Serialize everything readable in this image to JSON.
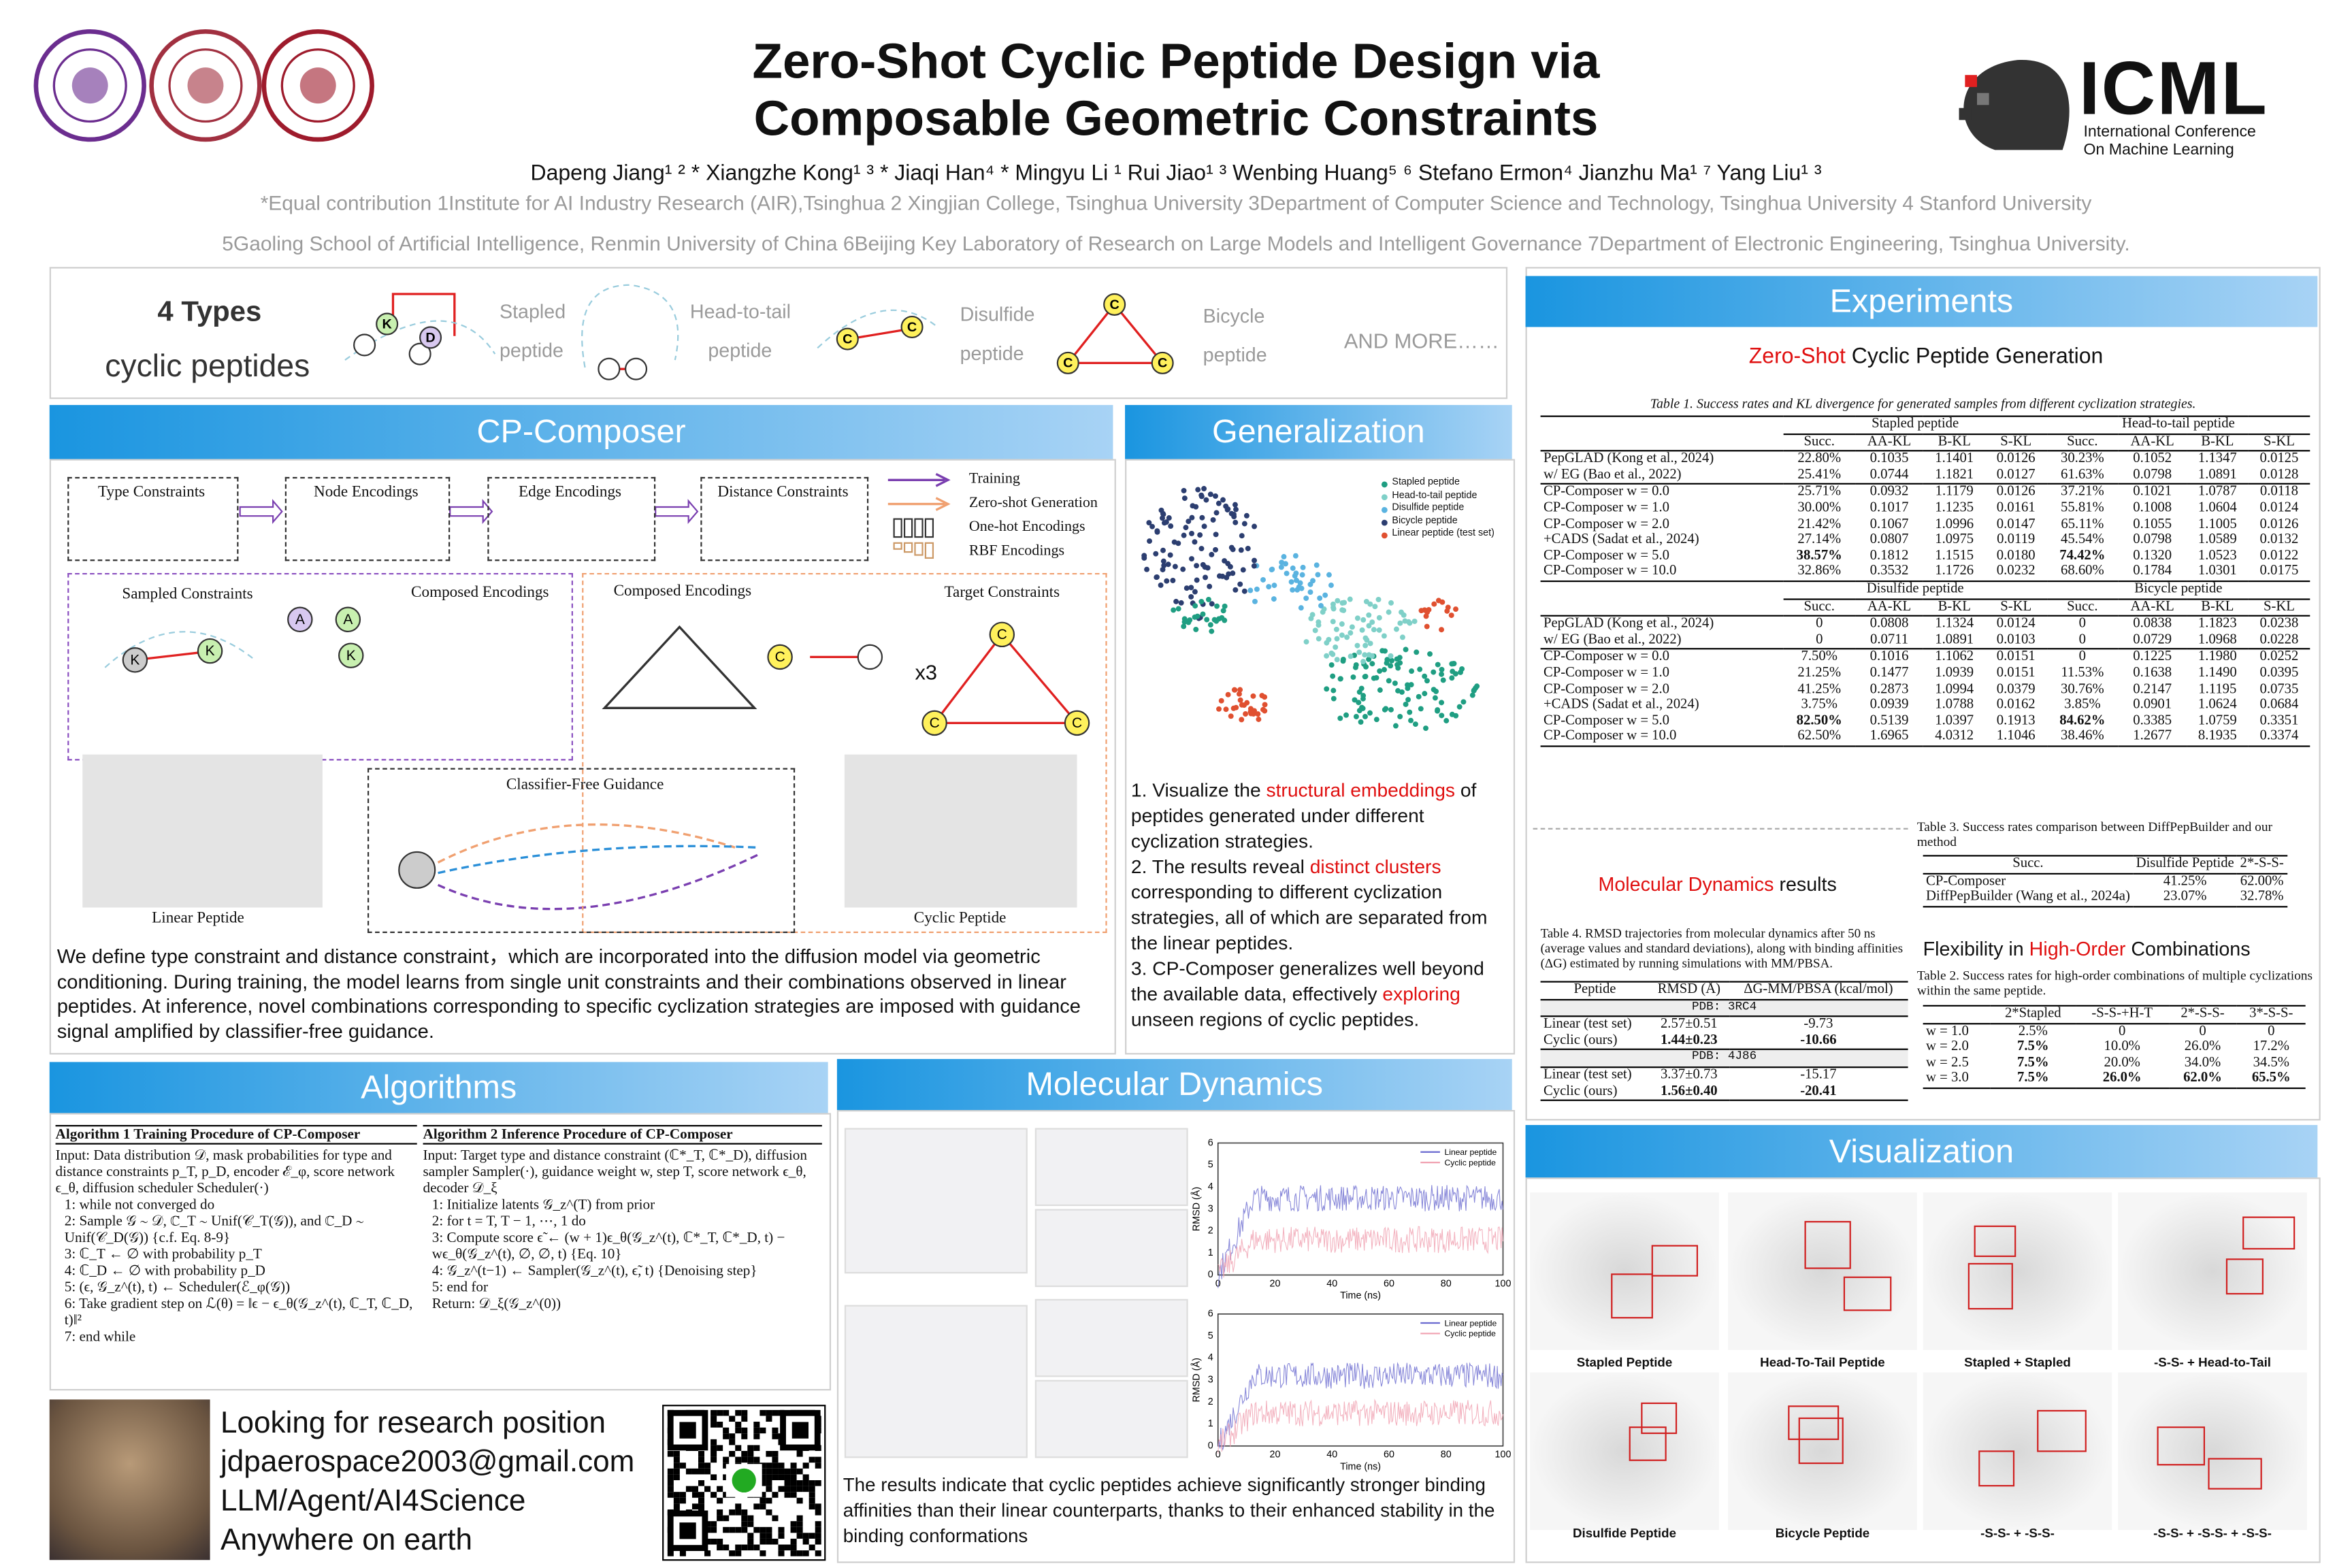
{
  "header": {
    "title": [
      "Zero-Shot Cyclic Peptide Design via",
      "Composable Geometric Constraints"
    ],
    "authors": "Dapeng Jiang¹ ² * Xiangzhe Kong¹ ³ * Jiaqi Han⁴ * Mingyu Li ¹ Rui Jiao¹ ³ Wenbing Huang⁵ ⁶ Stefano Ermon⁴ Jianzhu Ma¹ ⁷ Yang Liu¹ ³",
    "affiliations": [
      "*Equal contribution 1Institute for AI Industry Research (AIR),Tsinghua 2 Xingjian College, Tsinghua University 3Department of Computer Science and Technology, Tsinghua University 4 Stanford University",
      "5Gaoling School of Artificial Intelligence, Renmin University of China 6Beijing Key Laboratory of Research on Large Models and Intelligent Governance 7Department of Electronic Engineering, Tsinghua University."
    ],
    "logo": {
      "name": "ICML",
      "line1": "International Conference",
      "line2": "On Machine Learning"
    }
  },
  "types": {
    "heading": "4 Types",
    "subheading": "cyclic peptides",
    "labels": [
      "Stapled",
      "peptide",
      "Head-to-tail",
      "peptide",
      "Disulfide",
      "peptide",
      "Bicycle",
      "peptide"
    ],
    "more": "AND MORE……",
    "residues": [
      "K",
      "D",
      "C",
      "C",
      "C",
      "C",
      "C"
    ]
  },
  "sections": {
    "cp_composer": "CP-Composer",
    "generalization": "Generalization",
    "experiments": "Experiments",
    "algorithms": "Algorithms",
    "molecular_dynamics": "Molecular Dynamics",
    "visualization": "Visualization"
  },
  "cp_composer": {
    "boxes": [
      "Type Constraints",
      "Node Encodings",
      "Edge Encodings",
      "Distance Constraints"
    ],
    "legend": [
      "Training",
      "Zero-shot Generation",
      "One-hot Encodings",
      "RBF Encodings"
    ],
    "labels": [
      "Sampled Constraints",
      "Composed Encodings",
      "Composed Encodings",
      "Target Constraints",
      "Classifier-Free Guidance",
      "Linear Peptide",
      "Cyclic Peptide",
      "x3"
    ],
    "residues": [
      "K",
      "A",
      "K",
      "A",
      "K",
      "C",
      "C",
      "C",
      "C"
    ],
    "text": "We define type constraint and distance constraint，which are incorporated into the diffusion model via geometric conditioning. During training, the model learns from single unit constraints and their combinations observed in linear peptides. At inference, novel combinations corresponding to specific cyclization strategies are imposed with guidance signal amplified by classifier-free guidance."
  },
  "generalization": {
    "legend": [
      "Stapled peptide",
      "Head-to-tail peptide",
      "Disulfide peptide",
      "Bicycle peptide",
      "Linear peptide (test set)"
    ],
    "items": [
      {
        "before": "1. Visualize the ",
        "highlight": "structural embeddings",
        "after": " of peptides generated under different cyclization strategies."
      },
      {
        "before": "2. The results reveal ",
        "highlight": "distinct clusters",
        "after": " corresponding to different cyclization strategies, all of which are separated from the linear peptides."
      },
      {
        "before": "3. CP-Composer generalizes well beyond the available data, effectively ",
        "highlight": "exploring",
        "after": " unseen regions of cyclic peptides."
      }
    ]
  },
  "experiments": {
    "subtitle": {
      "highlight": "Zero-Shot",
      "rest": " Cyclic Peptide Generation"
    },
    "table1": {
      "caption": "Table 1. Success rates and KL divergence for generated samples from different cyclization strategies.",
      "sections": [
        {
          "groups": [
            "Stapled peptide",
            "Head-to-tail peptide"
          ],
          "columns": [
            "Succ.",
            "AA-KL",
            "B-KL",
            "S-KL",
            "Succ.",
            "AA-KL",
            "B-KL",
            "S-KL"
          ],
          "blocks": [
            [
              [
                "PepGLAD (Kong et al., 2024)",
                "22.80%",
                "0.1035",
                "1.1401",
                "0.0126",
                "30.23%",
                "0.1052",
                "1.1347",
                "0.0125"
              ],
              [
                "w/ EG (Bao et al., 2022)",
                "25.41%",
                "0.0744",
                "1.1821",
                "0.0127",
                "61.63%",
                "0.0798",
                "1.0891",
                "0.0128"
              ]
            ],
            [
              [
                "CP-Composer w = 0.0",
                "25.71%",
                "0.0932",
                "1.1179",
                "0.0126",
                "37.21%",
                "0.1021",
                "1.0787",
                "0.0118"
              ],
              [
                "CP-Composer w = 1.0",
                "30.00%",
                "0.1017",
                "1.1235",
                "0.0161",
                "55.81%",
                "0.1008",
                "1.0604",
                "0.0124"
              ],
              [
                "CP-Composer w = 2.0",
                "21.42%",
                "0.1067",
                "1.0996",
                "0.0147",
                "65.11%",
                "0.1055",
                "1.1005",
                "0.0126"
              ],
              [
                "+CADS (Sadat et al., 2024)",
                "27.14%",
                "0.0807",
                "1.0975",
                "0.0119",
                "45.54%",
                "0.0798",
                "1.0589",
                "0.0132"
              ],
              [
                "CP-Composer w = 5.0",
                "38.57%",
                "0.1812",
                "1.1515",
                "0.0180",
                "74.42%",
                "0.1320",
                "1.0523",
                "0.0122"
              ],
              [
                "CP-Composer w = 10.0",
                "32.86%",
                "0.3532",
                "1.1726",
                "0.0232",
                "68.60%",
                "0.1784",
                "1.0301",
                "0.0175"
              ]
            ]
          ]
        },
        {
          "groups": [
            "Disulfide peptide",
            "Bicycle peptide"
          ],
          "columns": [
            "Succ.",
            "AA-KL",
            "B-KL",
            "S-KL",
            "Succ.",
            "AA-KL",
            "B-KL",
            "S-KL"
          ],
          "blocks": [
            [
              [
                "PepGLAD (Kong et al., 2024)",
                "0",
                "0.0808",
                "1.1324",
                "0.0124",
                "0",
                "0.0838",
                "1.1823",
                "0.0238"
              ],
              [
                "w/ EG (Bao et al., 2022)",
                "0",
                "0.0711",
                "1.0891",
                "0.0103",
                "0",
                "0.0729",
                "1.0968",
                "0.0228"
              ]
            ],
            [
              [
                "CP-Composer w = 0.0",
                "7.50%",
                "0.1016",
                "1.1062",
                "0.0151",
                "0",
                "0.1225",
                "1.1980",
                "0.0252"
              ],
              [
                "CP-Composer w = 1.0",
                "21.25%",
                "0.1477",
                "1.0939",
                "0.0151",
                "11.53%",
                "0.1638",
                "1.1490",
                "0.0395"
              ],
              [
                "CP-Composer w = 2.0",
                "41.25%",
                "0.2873",
                "1.0994",
                "0.0379",
                "30.76%",
                "0.2147",
                "1.1195",
                "0.0735"
              ],
              [
                "+CADS (Sadat et al., 2024)",
                "3.75%",
                "0.0939",
                "1.0788",
                "0.0162",
                "3.85%",
                "0.0901",
                "1.0624",
                "0.0684"
              ],
              [
                "CP-Composer w = 5.0",
                "82.50%",
                "0.5139",
                "1.0397",
                "0.1913",
                "84.62%",
                "0.3385",
                "1.0759",
                "0.3351"
              ],
              [
                "CP-Composer w = 10.0",
                "62.50%",
                "1.6965",
                "4.0312",
                "1.1046",
                "38.46%",
                "1.2677",
                "8.1935",
                "0.3374"
              ]
            ]
          ]
        }
      ]
    },
    "md_results": {
      "highlight": "Molecular Dynamics",
      "rest": " results"
    },
    "table4": {
      "caption": "Table 4. RMSD trajectories from molecular dynamics after 50 ns (average values and standard deviations), along with binding affinities (ΔG) estimated by running simulations with MM/PBSA.",
      "columns": [
        "Peptide",
        "RMSD (Å)",
        "ΔG-MM/PBSA (kcal/mol)"
      ],
      "blocks": [
        {
          "pdb": "PDB: 3RC4",
          "rows": [
            [
              "Linear (test set)",
              "2.57±0.51",
              "-9.73"
            ],
            [
              "Cyclic (ours)",
              "1.44±0.23",
              "-10.66"
            ]
          ]
        },
        {
          "pdb": "PDB: 4J86",
          "rows": [
            [
              "Linear (test set)",
              "3.37±0.73",
              "-15.17"
            ],
            [
              "Cyclic (ours)",
              "1.56±0.40",
              "-20.41"
            ]
          ]
        }
      ]
    },
    "table3": {
      "caption": "Table 3. Success rates comparison between DiffPepBuilder and our method",
      "columns": [
        "Succ.",
        "Disulfide Peptide",
        "2*-S-S-"
      ],
      "rows": [
        [
          "CP-Composer",
          "41.25%",
          "62.00%"
        ],
        [
          "DiffPepBuilder (Wang et al., 2024a)",
          "23.07%",
          "32.78%"
        ]
      ]
    },
    "flexibility": {
      "before": "Flexibility in ",
      "highlight": "High-Order",
      "after": " Combinations"
    },
    "table2": {
      "caption": "Table 2. Success rates for high-order combinations of multiple cyclizations within the same peptide.",
      "columns": [
        "2*Stapled",
        "-S-S-+H-T",
        "2*-S-S-",
        "3*-S-S-"
      ],
      "rows": [
        [
          "w = 1.0",
          "2.5%",
          "0",
          "0",
          "0"
        ],
        [
          "w = 2.0",
          "7.5%",
          "10.0%",
          "26.0%",
          "17.2%"
        ],
        [
          "w = 2.5",
          "7.5%",
          "20.0%",
          "34.0%",
          "34.5%"
        ],
        [
          "w = 3.0",
          "7.5%",
          "26.0%",
          "62.0%",
          "65.5%"
        ]
      ]
    }
  },
  "algorithms": [
    {
      "title": "Algorithm 1 Training Procedure of CP-Composer",
      "lines": [
        "Input: Data distribution 𝒟, mask probabilities for type and distance constraints p_T, p_D, encoder ℰ_φ, score network ϵ_θ, diffusion scheduler Scheduler(·)",
        "1:  while not converged do",
        "2:    Sample 𝒢 ∼ 𝒟, ℂ_T ∼ Unif(𝒞_T(𝒢)), and ℂ_D ∼ Unif(𝒞_D(𝒢))   {c.f. Eq. 8-9}",
        "3:    ℂ_T ← ∅ with probability p_T",
        "4:    ℂ_D ← ∅ with probability p_D",
        "5:    (ϵ, 𝒢_z^(t), t) ← Scheduler(ℰ_φ(𝒢))",
        "6:    Take gradient step on ℒ(θ) = ‖ϵ − ϵ_θ(𝒢_z^(t), ℂ_T, ℂ_D, t)‖²",
        "7:  end while"
      ]
    },
    {
      "title": "Algorithm 2 Inference Procedure of CP-Composer",
      "lines": [
        "Input: Target type and distance constraint (ℂ*_T, ℂ*_D), diffusion sampler Sampler(·), guidance weight w, step T, score network ϵ_θ, decoder 𝒟_ξ",
        "1:  Initialize latents 𝒢_z^(T) from prior",
        "2:  for t = T, T − 1, ⋯, 1 do",
        "3:    Compute score ϵ̃ ← (w + 1)ϵ_θ(𝒢_z^(t), ℂ*_T, ℂ*_D, t) − wϵ_θ(𝒢_z^(t), ∅, ∅, t) {Eq. 10}",
        "4:    𝒢_z^(t−1) ← Sampler(𝒢_z^(t), ϵ̃, t)   {Denoising step}",
        "5:  end for",
        "Return: 𝒟_ξ(𝒢_z^(0))"
      ]
    }
  ],
  "molecular_dynamics": {
    "plots": [
      {
        "ylabel": "RMSD (Å)",
        "xlabel": "Time (ns)",
        "xticks": [
          0,
          20,
          40,
          60,
          80,
          100
        ],
        "yticks": [
          0,
          1,
          2,
          3,
          4,
          5,
          6
        ],
        "legend": [
          "Linear peptide",
          "Cyclic peptide"
        ]
      },
      {
        "ylabel": "RMSD (Å)",
        "xlabel": "Time (ns)",
        "xticks": [
          0,
          20,
          40,
          60,
          80,
          100
        ],
        "yticks": [
          0,
          1,
          2,
          3,
          4,
          5,
          6
        ],
        "legend": [
          "Linear peptide",
          "Cyclic peptide"
        ]
      }
    ],
    "text": "The results indicate that cyclic peptides achieve significantly stronger binding affinities than their linear counterparts, thanks to their enhanced stability in the binding conformations"
  },
  "visualization": {
    "labels": [
      "Stapled Peptide",
      "Head-To-Tail Peptide",
      "Stapled + Stapled",
      "-S-S- + Head-to-Tail",
      "Disulfide Peptide",
      "Bicycle Peptide",
      "-S-S- + -S-S-",
      "-S-S- + -S-S- + -S-S-"
    ]
  },
  "contact": [
    "Looking for research position",
    "jdpaerospace2003@gmail.com",
    "LLM/Agent/AI4Science",
    "Anywhere on earth"
  ]
}
